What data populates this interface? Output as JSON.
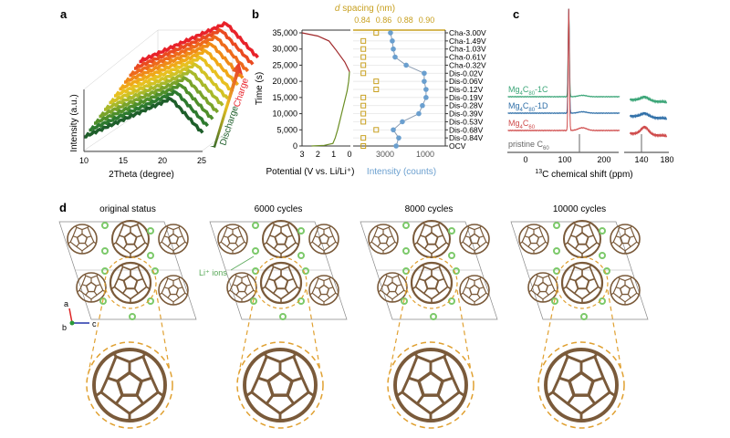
{
  "panel_labels": {
    "a": "a",
    "b": "b",
    "c": "c",
    "d": "d"
  },
  "chart_data": [
    {
      "panel": "a",
      "type": "line",
      "title": "",
      "xlabel": "2Theta (degree)",
      "ylabel": "Intensity (a.u.)",
      "xlim": [
        10,
        25
      ],
      "xticks": [
        "10",
        "15",
        "20",
        "25"
      ],
      "series_count": 12,
      "arrow_labels": {
        "discharge": "Discharge",
        "charge": "Charge"
      },
      "colors": {
        "discharge": "#1e5e2a",
        "charge": "#e8222a"
      }
    },
    {
      "panel": "b",
      "type": "line",
      "ylabel": "Time (s)",
      "yticks": [
        "0",
        "5,000",
        "10,000",
        "15,000",
        "20,000",
        "25,000",
        "30,000",
        "35,000"
      ],
      "ylim": [
        0,
        35000
      ],
      "left": {
        "xlabel": "Potential (V vs. Li/Li⁺)",
        "xticks": [
          "3",
          "2",
          "1",
          "0"
        ],
        "xlim": [
          3,
          0
        ],
        "discharge": {
          "potential": [
            2.4,
            1.6,
            1.05,
            0.9,
            0.75,
            0.6,
            0.45,
            0.3,
            0.15,
            0.05,
            0.0
          ],
          "time": [
            0,
            200,
            800,
            2500,
            5000,
            8000,
            11000,
            14000,
            17000,
            20000,
            23000
          ],
          "color": "#6b8e23"
        },
        "charge": {
          "potential": [
            0.0,
            0.1,
            0.3,
            0.6,
            0.9,
            1.3,
            2.0,
            3.0
          ],
          "time": [
            23000,
            24000,
            26000,
            28000,
            30000,
            32500,
            34000,
            35000
          ],
          "color": "#a0282a"
        }
      },
      "right": {
        "top_xlabel_italic": "d",
        "top_xlabel": " spacing (nm)",
        "top_xticks": [
          "0.84",
          "0.86",
          "0.88",
          "0.90"
        ],
        "bottom_xlabel": "Intensity (counts)",
        "bottom_xticks": [
          "3000",
          "1000"
        ],
        "states": [
          "OCV",
          "Dis-0.84V",
          "Dis-0.68V",
          "Dis-0.53V",
          "Dis-0.39V",
          "Dis-0.28V",
          "Dis-0.19V",
          "Dis-0.12V",
          "Dis-0.06V",
          "Dis-0.02V",
          "Cha-0.32V",
          "Cha-0.61V",
          "Cha-1.03V",
          "Cha-1.49V",
          "Cha-3.00V"
        ],
        "time": [
          0,
          2500,
          5000,
          7500,
          10000,
          12500,
          15000,
          17500,
          20000,
          22500,
          25000,
          27500,
          30000,
          32500,
          35000
        ],
        "d_spacing": [
          0.841,
          0.841,
          0.853,
          0.841,
          0.841,
          0.841,
          0.841,
          0.853,
          0.853,
          0.841,
          0.841,
          0.841,
          0.841,
          0.841,
          0.853
        ],
        "intensity": [
          2450,
          2320,
          2590,
          2140,
          1320,
          1140,
          960,
          960,
          1050,
          1050,
          1950,
          2500,
          2590,
          2640,
          2730
        ],
        "colors": {
          "d_spacing": "#c8a020",
          "intensity": "#6a9fcf"
        }
      }
    },
    {
      "panel": "c",
      "type": "line",
      "xlabel_sup": "13",
      "xlabel": "C chemical shift (ppm)",
      "xticks_left": [
        "0",
        "100",
        "200"
      ],
      "xticks_right": [
        "140",
        "180"
      ],
      "series": [
        {
          "name": "Mg4C80-1C",
          "label_base": "Mg",
          "sub1": "4",
          "mid": "C",
          "sub2": "80",
          "suffix": "-1C",
          "color": "#3aa577"
        },
        {
          "name": "Mg4C80-1D",
          "label_base": "Mg",
          "sub1": "4",
          "mid": "C",
          "sub2": "80",
          "suffix": "-1D",
          "color": "#2f6fa8"
        },
        {
          "name": "Mg4C60",
          "label_base": "Mg",
          "sub1": "4",
          "mid": "C",
          "sub2": "60",
          "suffix": "",
          "color": "#cf4a4a"
        },
        {
          "name": "pristine C60",
          "label_base": "pristine C",
          "sub2": "60",
          "color": "#666666"
        }
      ],
      "main_peak_ppm": 110,
      "broad_peak_ppm": 145
    }
  ],
  "panel_d": {
    "titles": [
      "original status",
      "6000 cycles",
      "8000 cycles",
      "10000 cycles"
    ],
    "li_label": "Li⁺ ions",
    "axes": {
      "a": "a",
      "b": "b",
      "c": "c"
    },
    "colors": {
      "bond": "#7a5a3a",
      "li": "#7cc96a",
      "dash": "#e0a030"
    }
  }
}
